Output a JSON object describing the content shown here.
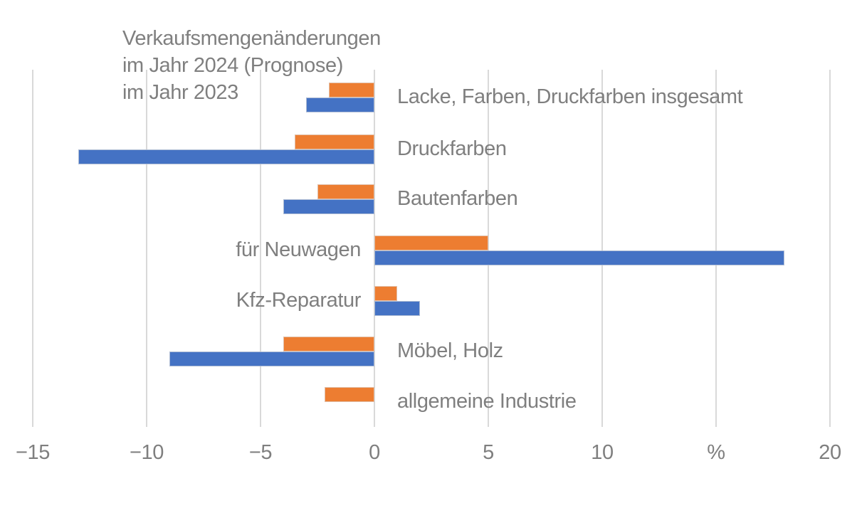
{
  "chart_data": {
    "type": "bar",
    "orientation": "horizontal",
    "title": "Verkaufsmengenänderungen",
    "legend": [
      {
        "name": "im Jahr 2024 (Prognose)",
        "color": "#ED7D31"
      },
      {
        "name": "im Jahr 2023",
        "color": "#4472C4"
      }
    ],
    "unit_label": "%",
    "categories": [
      "Lacke, Farben, Druckfarben insgesamt",
      "Druckfarben",
      "Bautenfarben",
      "für Neuwagen",
      "Kfz-Reparatur",
      "Möbel, Holz",
      "allgemeine Industrie"
    ],
    "category_label_side": [
      "right",
      "right",
      "right",
      "left",
      "left",
      "right",
      "right"
    ],
    "series": [
      {
        "name": "im Jahr 2024 (Prognose)",
        "color": "#ED7D31",
        "values": [
          -2,
          -3.5,
          -2.5,
          5,
          1,
          -4,
          -2.2
        ]
      },
      {
        "name": "im Jahr 2023",
        "color": "#4472C4",
        "values": [
          -3,
          -13,
          -4,
          18,
          2,
          -9,
          0
        ]
      }
    ],
    "xlim": [
      -15,
      20
    ],
    "xticks": [
      {
        "value": -15,
        "label": "−15"
      },
      {
        "value": -10,
        "label": "−10"
      },
      {
        "value": -5,
        "label": "−5"
      },
      {
        "value": 0,
        "label": "0"
      },
      {
        "value": 5,
        "label": "5"
      },
      {
        "value": 10,
        "label": "10"
      },
      {
        "value": 15,
        "label": "%"
      },
      {
        "value": 20,
        "label": "20"
      }
    ],
    "grid": true,
    "legend_position": "top-left-as-text"
  },
  "colors": {
    "text": "#7f7f7f",
    "gridline": "#d9d9d9",
    "background": "#ffffff",
    "series_2024": "#ED7D31",
    "series_2023": "#4472C4"
  }
}
